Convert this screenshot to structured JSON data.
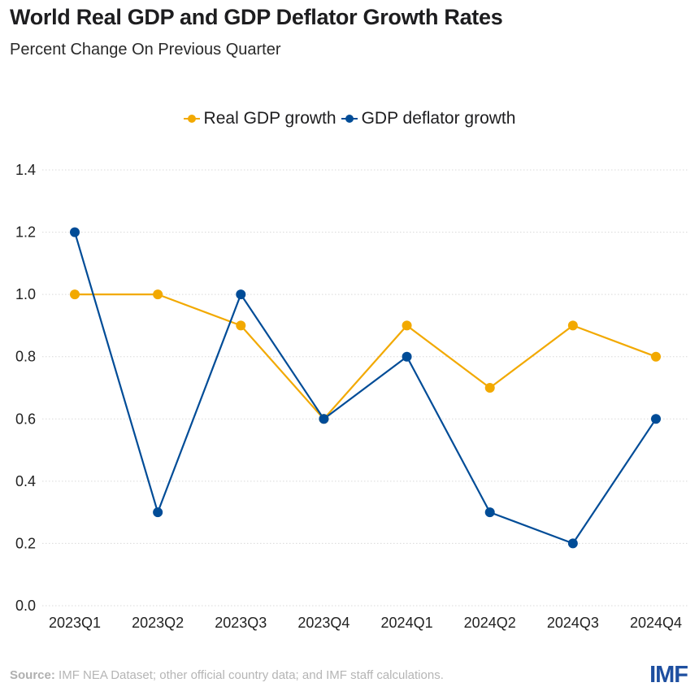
{
  "header": {
    "title": "World Real GDP and GDP Deflator Growth Rates",
    "subtitle": "Percent Change On Previous Quarter"
  },
  "footer": {
    "source_label": "Source:",
    "source_text": " IMF NEA Dataset; other official country data; and IMF staff calculations.",
    "logo": "IMF"
  },
  "chart_data": {
    "type": "line",
    "title": "World Real GDP and GDP Deflator Growth Rates",
    "subtitle": "Percent Change On Previous Quarter",
    "xlabel": "",
    "ylabel": "",
    "x": [
      "2023Q1",
      "2023Q2",
      "2023Q3",
      "2023Q4",
      "2024Q1",
      "2024Q2",
      "2024Q3",
      "2024Q4"
    ],
    "ylim": [
      0,
      1.4
    ],
    "yticks": [
      "0.0",
      "0.2",
      "0.4",
      "0.6",
      "0.8",
      "1.0",
      "1.2",
      "1.4"
    ],
    "grid": true,
    "legend_position": "top-center",
    "series": [
      {
        "name": "Real GDP growth",
        "color": "#f2a900",
        "values": [
          1.0,
          1.0,
          0.9,
          0.6,
          0.9,
          0.7,
          0.9,
          0.8
        ]
      },
      {
        "name": "GDP deflator growth",
        "color": "#004c97",
        "values": [
          1.2,
          0.3,
          1.0,
          0.6,
          0.8,
          0.3,
          0.2,
          0.6
        ]
      }
    ]
  }
}
